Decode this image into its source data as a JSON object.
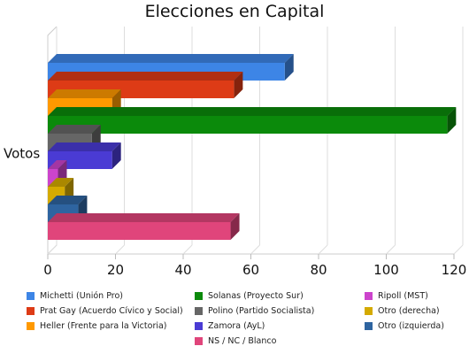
{
  "chart_data": {
    "type": "bar",
    "orientation": "horizontal",
    "title": "Elecciones en Capital",
    "categories": [
      "Votos"
    ],
    "xlim": [
      0,
      120
    ],
    "xticks": [
      0,
      20,
      40,
      60,
      80,
      100,
      120
    ],
    "grid": true,
    "legend_position": "bottom",
    "series": [
      {
        "name": "Michetti (Unión Pro)",
        "values": [
          70
        ],
        "color": "#3d85e6"
      },
      {
        "name": "Prat Gay (Acuerdo Cívico y Social)",
        "values": [
          55
        ],
        "color": "#dd3b16"
      },
      {
        "name": "Heller (Frente para la Victoria)",
        "values": [
          19
        ],
        "color": "#ff9900"
      },
      {
        "name": "Solanas (Proyecto Sur)",
        "values": [
          118
        ],
        "color": "#0b8a0b"
      },
      {
        "name": "Polino (Partido Socialista)",
        "values": [
          13
        ],
        "color": "#666666"
      },
      {
        "name": "Zamora (AyL)",
        "values": [
          19
        ],
        "color": "#4a3bd4"
      },
      {
        "name": "Ripoll (MST)",
        "values": [
          3
        ],
        "color": "#cc44cc"
      },
      {
        "name": "Otro (derecha)",
        "values": [
          5
        ],
        "color": "#d4aa00"
      },
      {
        "name": "Otro (izquierda)",
        "values": [
          9
        ],
        "color": "#2e64a0"
      },
      {
        "name": "NS / NC / Blanco",
        "values": [
          54
        ],
        "color": "#e0457b"
      }
    ]
  }
}
